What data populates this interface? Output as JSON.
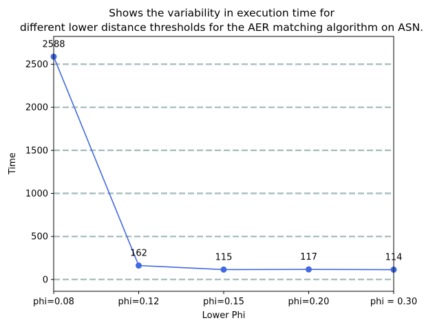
{
  "chart_data": {
    "type": "line",
    "title_lines": [
      "Shows the variability in execution time for",
      "different lower distance thresholds for the AER matching algorithm on ASN."
    ],
    "xlabel": "Lower Phi",
    "ylabel": "Time",
    "categories": [
      "phi=0.08",
      "phi=0.12",
      "phi=0.15",
      "phi=0.20",
      "phi = 0.30"
    ],
    "values": [
      2588,
      162,
      115,
      117,
      114
    ],
    "data_labels": [
      "2588",
      "162",
      "115",
      "117",
      "114"
    ],
    "ylim": [
      -137,
      2823
    ],
    "yticks": [
      0,
      500,
      1000,
      1500,
      2000,
      2500
    ],
    "grid": "horizontal-dashed",
    "line_color": "#4169e1",
    "grid_color": "#a9bfbf"
  }
}
